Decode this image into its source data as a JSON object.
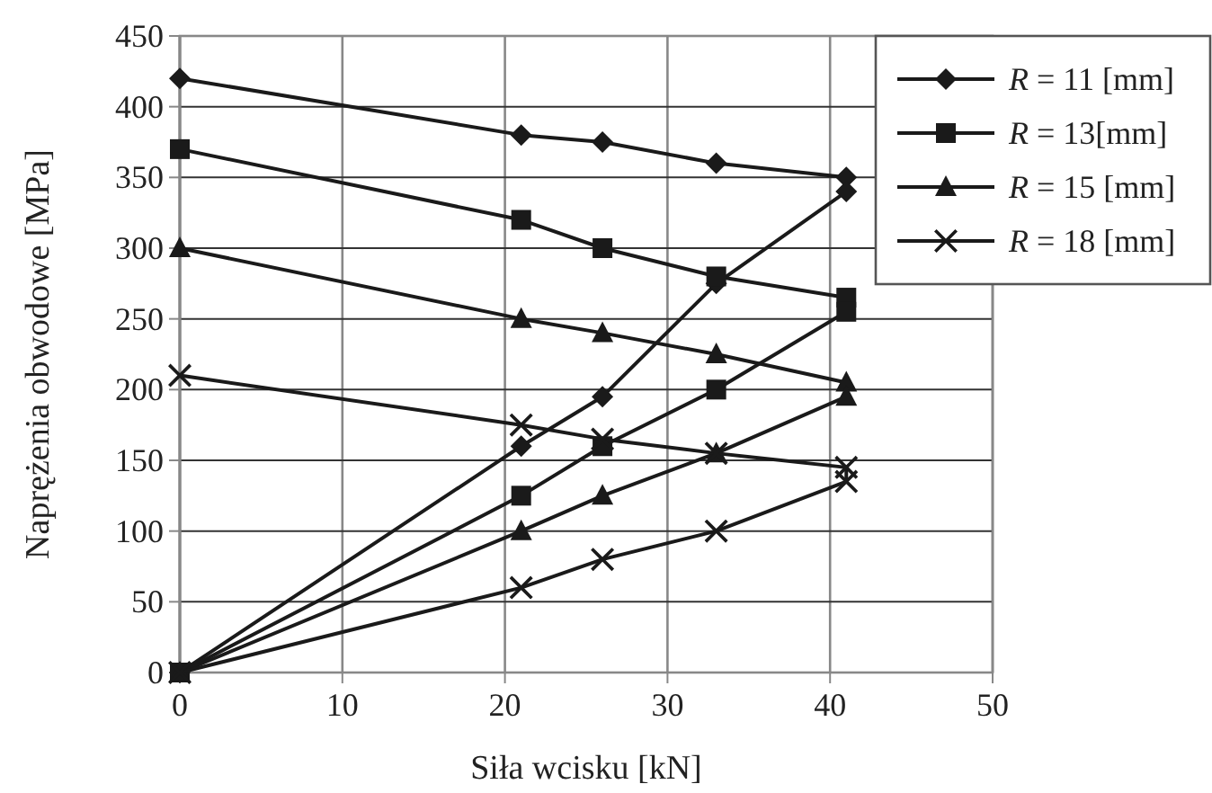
{
  "chart_data": {
    "type": "line",
    "xlabel": "Siła wcisku [kN]",
    "ylabel": "Naprężenia obwodowe [MPa]",
    "xlim": [
      0,
      50
    ],
    "xticks": [
      0,
      10,
      20,
      30,
      40,
      50
    ],
    "ylim": [
      0,
      450
    ],
    "yticks": [
      0,
      50,
      100,
      150,
      200,
      250,
      300,
      350,
      400,
      450
    ],
    "grid": true,
    "legend": "top right",
    "line_style": "solid",
    "series": [
      {
        "name": "R = 11 [mm]",
        "color": "#1a1a1a",
        "marker": "diamond",
        "x": [
          0,
          21,
          26,
          33,
          41,
          41,
          33,
          26,
          21,
          0
        ],
        "values": [
          420,
          380,
          375,
          360,
          350,
          340,
          275,
          195,
          160,
          0
        ]
      },
      {
        "name": "R = 13[mm]",
        "color": "#1a1a1a",
        "marker": "square",
        "x": [
          0,
          21,
          26,
          33,
          41,
          41,
          33,
          26,
          21,
          0
        ],
        "values": [
          370,
          320,
          300,
          280,
          265,
          255,
          200,
          160,
          125,
          0
        ]
      },
      {
        "name": "R = 15 [mm]",
        "color": "#1a1a1a",
        "marker": "triangle",
        "x": [
          0,
          21,
          26,
          33,
          41,
          41,
          33,
          26,
          21,
          0
        ],
        "values": [
          300,
          250,
          240,
          225,
          205,
          195,
          155,
          125,
          100,
          0
        ]
      },
      {
        "name": "R = 18 [mm]",
        "color": "#1a1a1a",
        "marker": "cross",
        "x": [
          0,
          21,
          26,
          33,
          41,
          41,
          33,
          26,
          21,
          0
        ],
        "values": [
          210,
          175,
          165,
          155,
          145,
          135,
          100,
          80,
          60,
          0
        ]
      }
    ]
  }
}
